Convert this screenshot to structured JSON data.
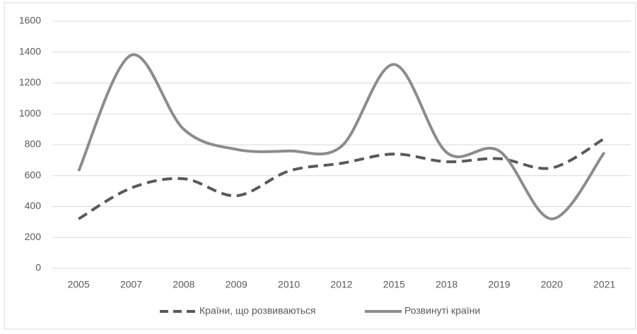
{
  "chart_data": {
    "type": "line",
    "categories": [
      "2005",
      "2007",
      "2008",
      "2009",
      "2010",
      "2012",
      "2015",
      "2018",
      "2019",
      "2020",
      "2021"
    ],
    "series": [
      {
        "name": "Країни, що розвиваються",
        "color": "#595959",
        "dash": true,
        "values": [
          320,
          520,
          580,
          470,
          630,
          680,
          740,
          690,
          710,
          650,
          840
        ]
      },
      {
        "name": "Розвинуті країни",
        "color": "#8c8c8c",
        "dash": false,
        "values": [
          630,
          1380,
          900,
          770,
          760,
          790,
          1320,
          750,
          760,
          320,
          750
        ]
      }
    ],
    "ylim": [
      0,
      1600
    ],
    "yticks": [
      0,
      200,
      400,
      600,
      800,
      1000,
      1200,
      1400,
      1600
    ],
    "grid": true,
    "legend": "bottom"
  }
}
